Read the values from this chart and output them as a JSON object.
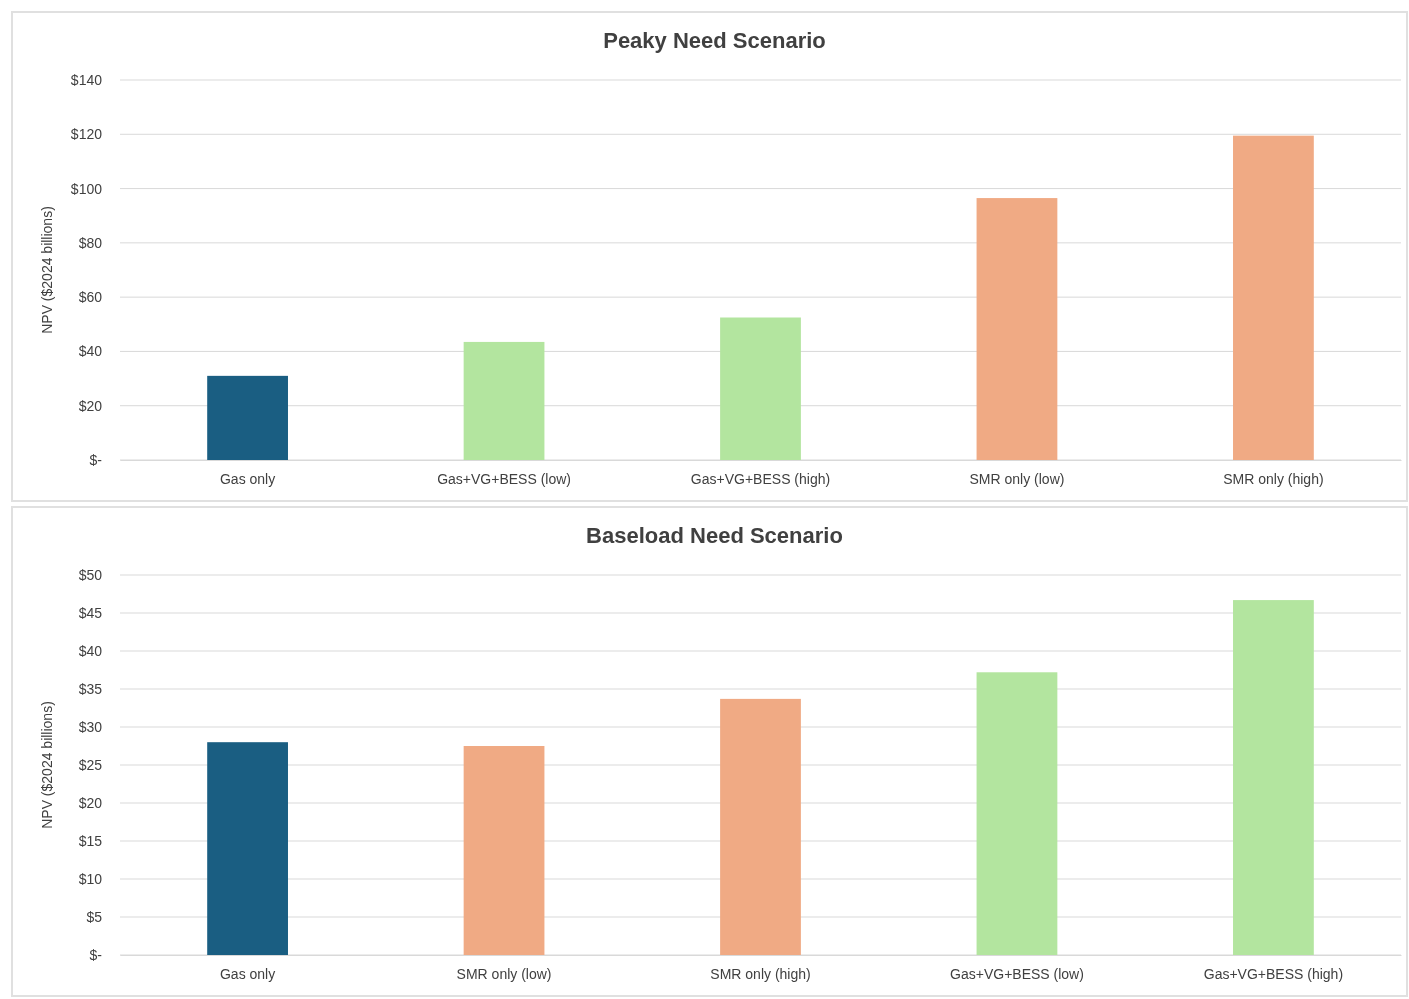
{
  "chart_data": [
    {
      "type": "bar",
      "title": "Peaky Need Scenario",
      "ylabel": "NPV ($2024 billions)",
      "categories": [
        "Gas only",
        "Gas+VG+BESS (low)",
        "Gas+VG+BESS (high)",
        "SMR only (low)",
        "SMR only (high)"
      ],
      "values": [
        31,
        43.5,
        52.5,
        96.5,
        119.5
      ],
      "colors": [
        "#1a5e82",
        "#b3e59f",
        "#b3e59f",
        "#f0aa84",
        "#f0aa84"
      ],
      "ylim": [
        0,
        140
      ],
      "yticks": [
        {
          "value": 0,
          "label": "$-"
        },
        {
          "value": 20,
          "label": "$20"
        },
        {
          "value": 40,
          "label": "$40"
        },
        {
          "value": 60,
          "label": "$60"
        },
        {
          "value": 80,
          "label": "$80"
        },
        {
          "value": 100,
          "label": "$100"
        },
        {
          "value": 120,
          "label": "$120"
        },
        {
          "value": 140,
          "label": "$140"
        }
      ],
      "grid": "y"
    },
    {
      "type": "bar",
      "title": "Baseload Need Scenario",
      "ylabel": "NPV ($2024 billions)",
      "categories": [
        "Gas only",
        "SMR only (low)",
        "SMR only (high)",
        "Gas+VG+BESS (low)",
        "Gas+VG+BESS (high)"
      ],
      "values": [
        28,
        27.5,
        33.7,
        37.2,
        46.7
      ],
      "colors": [
        "#1a5e82",
        "#f0aa84",
        "#f0aa84",
        "#b3e59f",
        "#b3e59f"
      ],
      "ylim": [
        0,
        50
      ],
      "yticks": [
        {
          "value": 0,
          "label": "$-"
        },
        {
          "value": 5,
          "label": "$5"
        },
        {
          "value": 10,
          "label": "$10"
        },
        {
          "value": 15,
          "label": "$15"
        },
        {
          "value": 20,
          "label": "$20"
        },
        {
          "value": 25,
          "label": "$25"
        },
        {
          "value": 30,
          "label": "$30"
        },
        {
          "value": 35,
          "label": "$35"
        },
        {
          "value": 40,
          "label": "$40"
        },
        {
          "value": 45,
          "label": "$45"
        },
        {
          "value": 50,
          "label": "$50"
        }
      ],
      "grid": "y"
    }
  ]
}
